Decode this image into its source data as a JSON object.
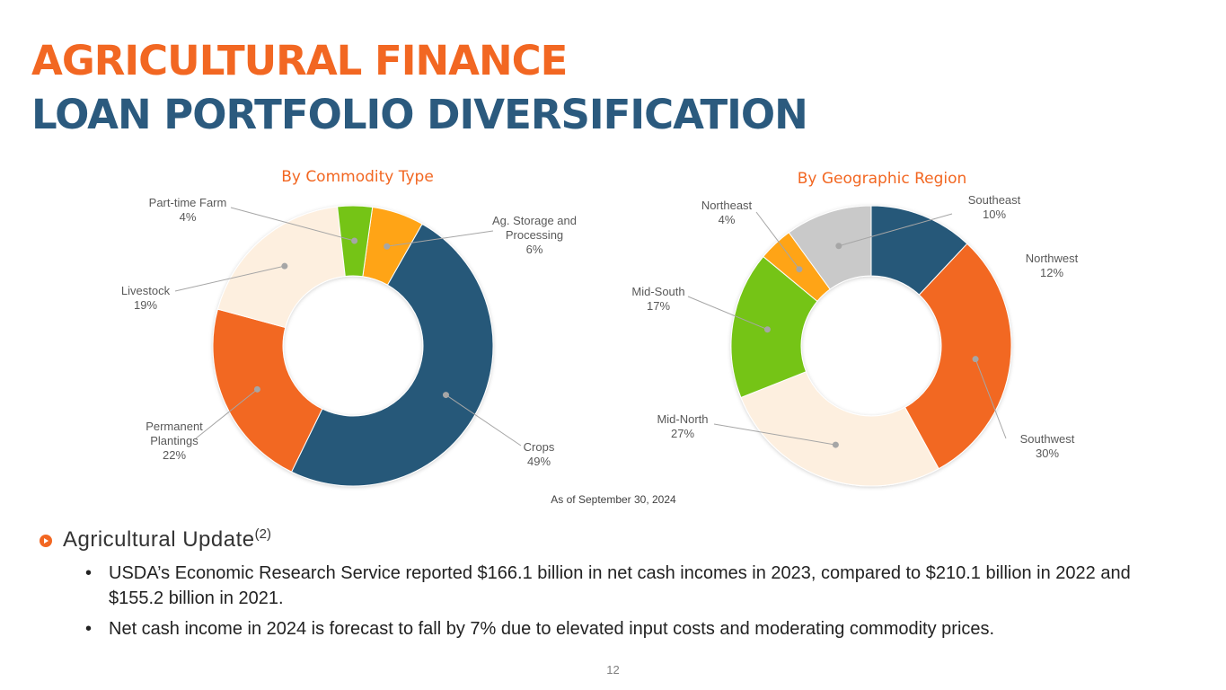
{
  "header": {
    "title_line1": "AGRICULTURAL FINANCE",
    "title_line2": "LOAN PORTFOLIO DIVERSIFICATION"
  },
  "chart_data": [
    {
      "type": "pie",
      "variant": "donut",
      "title": "By Commodity Type",
      "slices": [
        {
          "label": [
            "Ag. Storage and",
            "Processing"
          ],
          "value": 6,
          "display": "6%",
          "color": "#ffa412"
        },
        {
          "label": [
            "Crops"
          ],
          "value": 49,
          "display": "49%",
          "color": "#275879"
        },
        {
          "label": [
            "Permanent",
            "Plantings"
          ],
          "value": 22,
          "display": "22%",
          "color": "#f26722"
        },
        {
          "label": [
            "Livestock"
          ],
          "value": 19,
          "display": "19%",
          "color": "#fdefdf"
        },
        {
          "label": [
            "Part-time Farm"
          ],
          "value": 4,
          "display": "4%",
          "color": "#74c415"
        }
      ]
    },
    {
      "type": "pie",
      "variant": "donut",
      "title": "By Geographic Region",
      "slices": [
        {
          "label": [
            "Northwest"
          ],
          "value": 12,
          "display": "12%",
          "color": "#275879"
        },
        {
          "label": [
            "Southwest"
          ],
          "value": 30,
          "display": "30%",
          "color": "#f26722"
        },
        {
          "label": [
            "Mid-North"
          ],
          "value": 27,
          "display": "27%",
          "color": "#fdefdf"
        },
        {
          "label": [
            "Mid-South"
          ],
          "value": 17,
          "display": "17%",
          "color": "#74c415"
        },
        {
          "label": [
            "Northeast"
          ],
          "value": 4,
          "display": "4%",
          "color": "#ffa412"
        },
        {
          "label": [
            "Southeast"
          ],
          "value": 10,
          "display": "10%",
          "color": "#c9c9c9"
        }
      ]
    }
  ],
  "as_of": "As of September 30, 2024",
  "section": {
    "heading": "Agricultural Update",
    "footnote": "(2)",
    "bullets": [
      "USDA’s Economic Research Service reported $166.1 billion in net cash incomes in 2023, compared to $210.1 billion in 2022 and $155.2 billion in 2021.",
      "Net cash income in 2024 is forecast to fall by 7% due to elevated input costs and moderating commodity prices."
    ]
  },
  "page_number": "12",
  "colors": {
    "accent_orange": "#f26722",
    "title_blue": "#2b5a7e"
  }
}
